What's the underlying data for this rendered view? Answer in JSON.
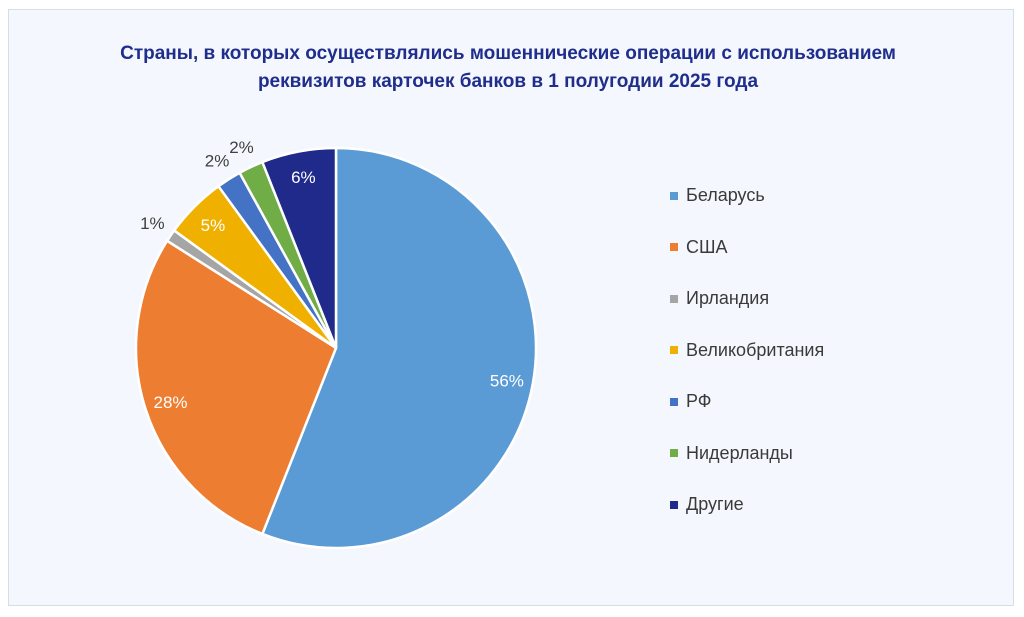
{
  "chart_data": {
    "type": "pie",
    "title": "Страны, в которых осуществлялись мошеннические операции с использованием реквизитов карточек банков в 1 полугодии 2025 года",
    "title_lines": [
      "Страны, в которых осуществлялись мошеннические операции с использованием",
      "реквизитов карточек банков в 1 полугодии 2025 года"
    ],
    "start": "top",
    "direction": "clockwise",
    "legend_position": "right",
    "slices": [
      {
        "label": "Беларусь",
        "value": 56,
        "data_label": "56%",
        "color": "#5b9bd5",
        "label_inside": true
      },
      {
        "label": "США",
        "value": 28,
        "data_label": "28%",
        "color": "#ed7d31",
        "label_inside": true
      },
      {
        "label": "Ирландия",
        "value": 1,
        "data_label": "1%",
        "color": "#a5a5a5",
        "label_inside": false
      },
      {
        "label": "Великобритания",
        "value": 5,
        "data_label": "5%",
        "color": "#f0b000",
        "label_inside": true
      },
      {
        "label": "РФ",
        "value": 2,
        "data_label": "2%",
        "color": "#4472c4",
        "label_inside": false
      },
      {
        "label": "Нидерланды",
        "value": 2,
        "data_label": "2%",
        "color": "#70ad47",
        "label_inside": false
      },
      {
        "label": "Другие",
        "value": 6,
        "data_label": "6%",
        "color": "#1f2a8a",
        "label_inside": true
      }
    ]
  }
}
